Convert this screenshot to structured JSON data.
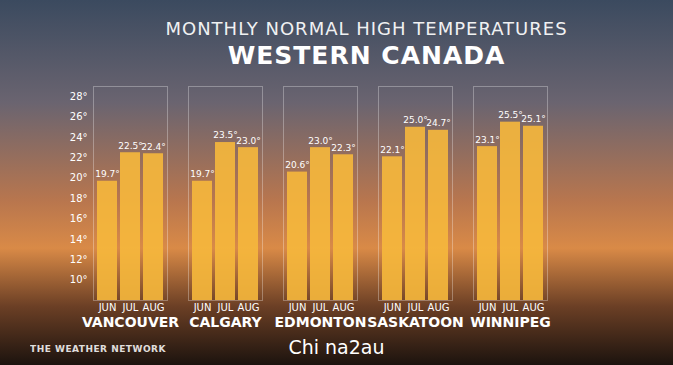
{
  "chart_data": {
    "type": "bar",
    "title": "MONTHLY NORMAL HIGH TEMPERATURES",
    "subtitle": "WESTERN CANADA",
    "source": "THE WEATHER NETWORK",
    "watermark": "Chi na2au",
    "categories": [
      "VANCOUVER",
      "CALGARY",
      "EDMONTON",
      "SASKATOON",
      "WINNIPEG"
    ],
    "series": [
      {
        "name": "JUN",
        "color": "#f6b83c",
        "values": [
          19.7,
          19.7,
          20.6,
          22.1,
          23.1
        ],
        "value_labels": [
          "19.7°",
          "19.7°",
          "20.6°",
          "22.1°",
          "23.1°"
        ]
      },
      {
        "name": "JUL",
        "color": "#f6b83c",
        "values": [
          22.5,
          23.5,
          23.0,
          25.0,
          25.5
        ],
        "value_labels": [
          "22.5°",
          "23.5°",
          "23.0°",
          "25.0°",
          "25.5°"
        ]
      },
      {
        "name": "AUG",
        "color": "#f6b83c",
        "values": [
          22.4,
          23.0,
          22.3,
          24.7,
          25.1
        ],
        "value_labels": [
          "22.4°",
          "23.0°",
          "22.3°",
          "24.7°",
          "25.1°"
        ]
      }
    ],
    "ylim": [
      8,
      29
    ],
    "yticks": [
      {
        "value": 10,
        "label": "10°"
      },
      {
        "value": 12,
        "label": "12°"
      },
      {
        "value": 14,
        "label": "14°"
      },
      {
        "value": 16,
        "label": "16°"
      },
      {
        "value": 18,
        "label": "18°"
      },
      {
        "value": 20,
        "label": "20°"
      },
      {
        "value": 22,
        "label": "22°"
      },
      {
        "value": 24,
        "label": "24°"
      },
      {
        "value": 26,
        "label": "26°"
      },
      {
        "value": 28,
        "label": "28°"
      }
    ],
    "grid": false,
    "data_labels": true
  }
}
